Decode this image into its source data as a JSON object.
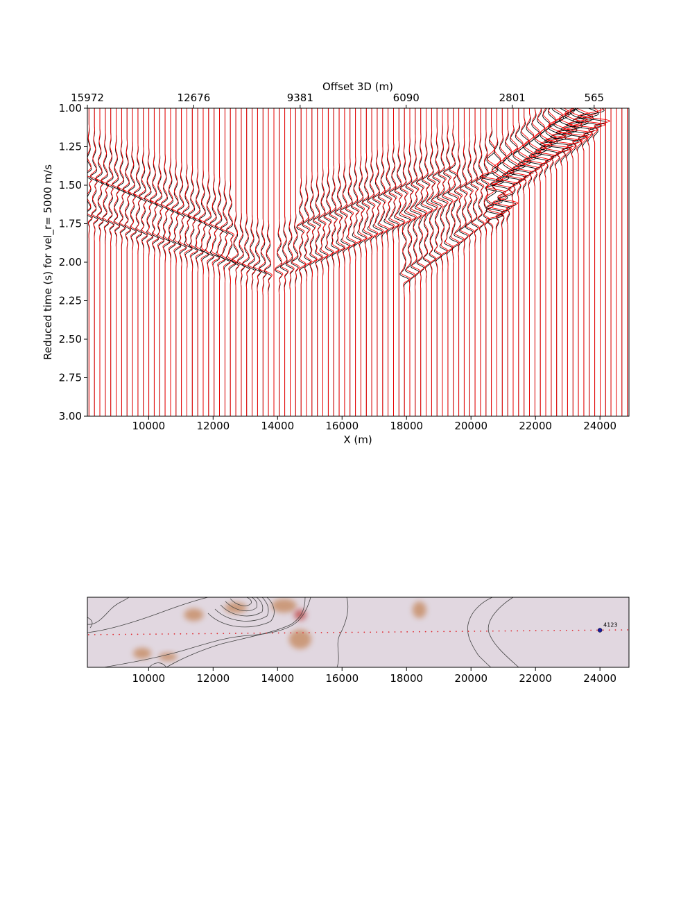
{
  "chart_data": [
    {
      "type": "line",
      "title": "",
      "xlabel": "X (m)",
      "ylabel": "Reduced time (s) for vel_r= 5000 m/s",
      "top_xlabel": "Offset 3D (m)",
      "xlim": [
        8100,
        24900
      ],
      "ylim": [
        3.0,
        1.0
      ],
      "y_ticks": [
        "1.00",
        "1.25",
        "1.50",
        "1.75",
        "2.00",
        "2.25",
        "2.50",
        "2.75",
        "3.00"
      ],
      "x_ticks": [
        {
          "value": 10000,
          "label": "10000"
        },
        {
          "value": 12000,
          "label": "12000"
        },
        {
          "value": 14000,
          "label": "14000"
        },
        {
          "value": 16000,
          "label": "16000"
        },
        {
          "value": 18000,
          "label": "18000"
        },
        {
          "value": 20000,
          "label": "20000"
        },
        {
          "value": 22000,
          "label": "22000"
        },
        {
          "value": 24000,
          "label": "24000"
        }
      ],
      "top_x_ticks": [
        {
          "x": 8100,
          "label": "15972"
        },
        {
          "x": 11400,
          "label": "12676"
        },
        {
          "x": 14700,
          "label": "9381"
        },
        {
          "x": 17990,
          "label": "6090"
        },
        {
          "x": 21280,
          "label": "2801"
        },
        {
          "x": 23820,
          "label": "565"
        }
      ],
      "trace_x_start": 8150,
      "trace_x_end": 24850,
      "trace_count": 100,
      "series": [
        {
          "color": "#000000"
        },
        {
          "color": "#ff0000"
        }
      ],
      "events": [
        {
          "x": [
            8150,
            13800
          ],
          "t": [
            1.7,
            2.08
          ]
        },
        {
          "x": [
            8150,
            12600
          ],
          "t": [
            1.45,
            1.82
          ]
        },
        {
          "x": [
            13900,
            20800
          ],
          "t": [
            2.08,
            1.45
          ]
        },
        {
          "x": [
            14600,
            19500
          ],
          "t": [
            1.8,
            1.42
          ]
        },
        {
          "x": [
            17800,
            21200
          ],
          "t": [
            2.12,
            1.6
          ]
        },
        {
          "x": [
            20700,
            24000
          ],
          "t": [
            1.55,
            1.05
          ]
        }
      ],
      "grid": false
    },
    {
      "type": "heatmap",
      "xlabel": "",
      "ylabel": "",
      "xlim": [
        8100,
        24900
      ],
      "x_ticks": [
        {
          "value": 10000,
          "label": "10000"
        },
        {
          "value": 12000,
          "label": "12000"
        },
        {
          "value": 14000,
          "label": "14000"
        },
        {
          "value": 16000,
          "label": "16000"
        },
        {
          "value": 18000,
          "label": "18000"
        },
        {
          "value": 20000,
          "label": "20000"
        },
        {
          "value": 22000,
          "label": "22000"
        },
        {
          "value": 24000,
          "label": "24000"
        }
      ],
      "background_color": "#e1d7e0",
      "profile_color": "#e0262c",
      "marker": {
        "x": 24000,
        "label": "4123",
        "color": "#1a1aa0"
      },
      "blobs": [
        {
          "x": 11400,
          "level": 0.25
        },
        {
          "x": 12700,
          "level": 0.15
        },
        {
          "x": 14200,
          "level": 0.12
        },
        {
          "x": 14700,
          "level": 0.6
        },
        {
          "x": 18400,
          "level": 0.18
        },
        {
          "x": 9800,
          "level": 0.8
        },
        {
          "x": 10600,
          "level": 0.85
        }
      ]
    }
  ]
}
